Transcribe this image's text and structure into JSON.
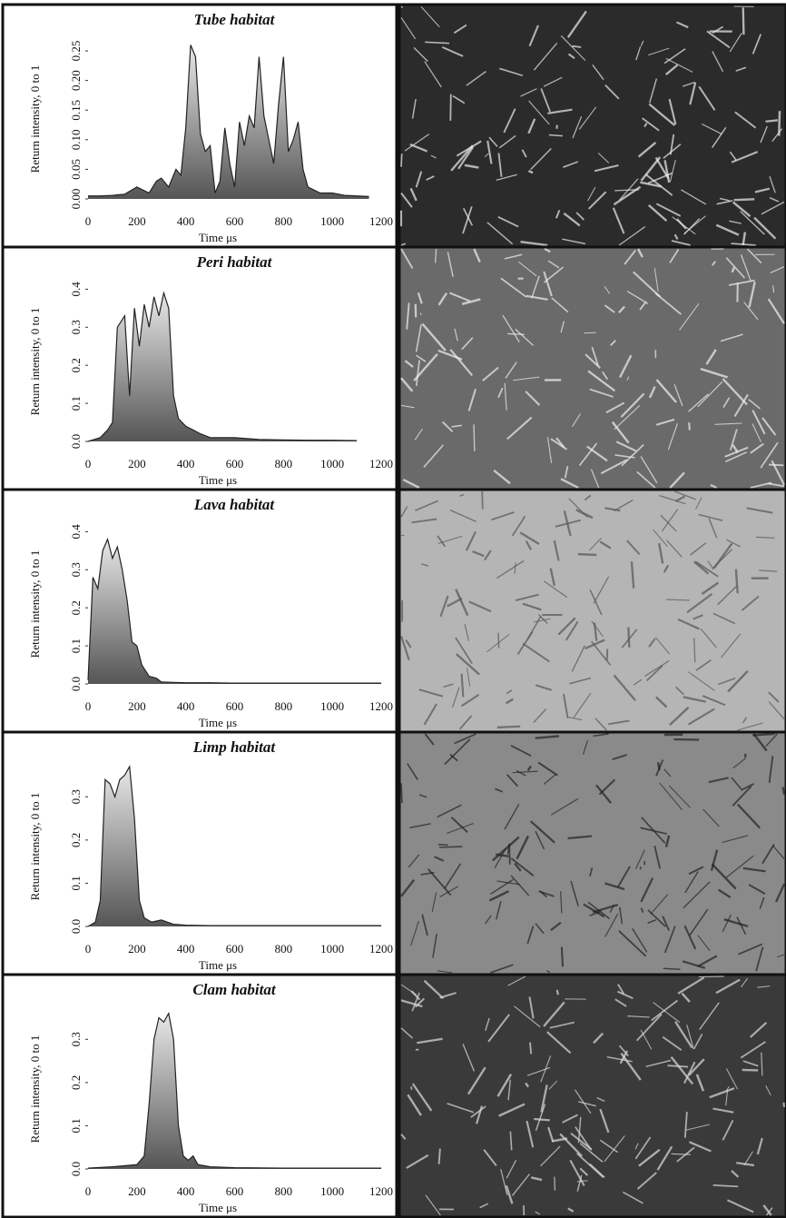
{
  "chart_data": [
    {
      "type": "area",
      "title": "Tube habitat",
      "xlabel": "Time μs",
      "ylabel": "Return intensity, 0 to 1",
      "xlim": [
        0,
        1200
      ],
      "xticks": [
        0,
        200,
        400,
        600,
        800,
        1000,
        1200
      ],
      "ylim": [
        0,
        0.27
      ],
      "yticks": [
        {
          "value": 0,
          "label": "0.00"
        },
        0.05,
        {
          "value": 0.1,
          "label": "0.10"
        },
        0.15,
        {
          "value": 0.2,
          "label": "0.20"
        },
        0.25
      ],
      "x": [
        0,
        50,
        100,
        150,
        200,
        250,
        280,
        300,
        330,
        360,
        380,
        400,
        420,
        440,
        460,
        480,
        500,
        520,
        540,
        560,
        580,
        600,
        620,
        640,
        660,
        680,
        700,
        720,
        740,
        760,
        780,
        800,
        820,
        840,
        860,
        880,
        900,
        950,
        1000,
        1050,
        1100,
        1150
      ],
      "values": [
        0.005,
        0.005,
        0.006,
        0.008,
        0.02,
        0.01,
        0.03,
        0.035,
        0.02,
        0.05,
        0.04,
        0.12,
        0.26,
        0.24,
        0.11,
        0.08,
        0.09,
        0.01,
        0.03,
        0.12,
        0.06,
        0.02,
        0.13,
        0.09,
        0.14,
        0.12,
        0.24,
        0.14,
        0.1,
        0.06,
        0.16,
        0.24,
        0.08,
        0.1,
        0.13,
        0.05,
        0.02,
        0.01,
        0.01,
        0.006,
        0.005,
        0.004
      ]
    },
    {
      "type": "area",
      "title": "Peri habitat",
      "xlabel": "Time μs",
      "ylabel": "Return intensity, 0 to 1",
      "xlim": [
        0,
        1200
      ],
      "xticks": [
        0,
        200,
        400,
        600,
        800,
        1000,
        1200
      ],
      "ylim": [
        0,
        0.42
      ],
      "yticks": [
        {
          "value": 0,
          "label": "0.0"
        },
        0.1,
        0.2,
        0.3,
        0.4
      ],
      "x": [
        0,
        50,
        80,
        100,
        120,
        150,
        170,
        190,
        210,
        230,
        250,
        270,
        290,
        310,
        330,
        350,
        370,
        400,
        430,
        460,
        500,
        550,
        600,
        700,
        800,
        900,
        1000,
        1100
      ],
      "values": [
        0,
        0.01,
        0.03,
        0.05,
        0.3,
        0.33,
        0.12,
        0.35,
        0.25,
        0.36,
        0.3,
        0.38,
        0.33,
        0.39,
        0.35,
        0.12,
        0.06,
        0.04,
        0.03,
        0.02,
        0.01,
        0.01,
        0.01,
        0.005,
        0.004,
        0.003,
        0.003,
        0.002
      ]
    },
    {
      "type": "area",
      "title": "Lava habitat",
      "xlabel": "Time μs",
      "ylabel": "Return intensity, 0 to 1",
      "xlim": [
        0,
        1200
      ],
      "xticks": [
        0,
        200,
        400,
        600,
        800,
        1000,
        1200
      ],
      "ylim": [
        0,
        0.42
      ],
      "yticks": [
        {
          "value": 0,
          "label": "0.0"
        },
        0.1,
        0.2,
        0.3,
        0.4
      ],
      "x": [
        0,
        20,
        40,
        60,
        80,
        100,
        120,
        140,
        160,
        180,
        200,
        220,
        250,
        280,
        300,
        350,
        400,
        500,
        600,
        800,
        1000,
        1200
      ],
      "values": [
        0.01,
        0.28,
        0.25,
        0.35,
        0.38,
        0.33,
        0.36,
        0.3,
        0.22,
        0.11,
        0.1,
        0.05,
        0.02,
        0.015,
        0.005,
        0.004,
        0.003,
        0.003,
        0.002,
        0.002,
        0.002,
        0.002
      ]
    },
    {
      "type": "area",
      "title": "Limp habitat",
      "xlabel": "Time μs",
      "ylabel": "Return intensity, 0 to 1",
      "xlim": [
        0,
        1200
      ],
      "xticks": [
        0,
        200,
        400,
        600,
        800,
        1000,
        1200
      ],
      "ylim": [
        0,
        0.37
      ],
      "yticks": [
        {
          "value": 0,
          "label": "0.0"
        },
        0.1,
        0.2,
        0.3
      ],
      "x": [
        0,
        30,
        50,
        70,
        90,
        110,
        130,
        150,
        170,
        190,
        210,
        230,
        260,
        300,
        350,
        400,
        500,
        600,
        800,
        1000,
        1200
      ],
      "values": [
        0,
        0.01,
        0.06,
        0.34,
        0.33,
        0.3,
        0.34,
        0.35,
        0.37,
        0.25,
        0.06,
        0.02,
        0.01,
        0.015,
        0.005,
        0.003,
        0.002,
        0.002,
        0.002,
        0.002,
        0.002
      ]
    },
    {
      "type": "area",
      "title": "Clam habitat",
      "xlabel": "Time μs",
      "ylabel": "Return intensity, 0 to 1",
      "xlim": [
        0,
        1200
      ],
      "xticks": [
        0,
        200,
        400,
        600,
        800,
        1000,
        1200
      ],
      "ylim": [
        0,
        0.37
      ],
      "yticks": [
        {
          "value": 0,
          "label": "0.0"
        },
        0.1,
        0.2,
        0.3
      ],
      "x": [
        0,
        100,
        200,
        230,
        250,
        270,
        290,
        310,
        330,
        350,
        370,
        390,
        410,
        430,
        450,
        500,
        600,
        800,
        1000,
        1200
      ],
      "values": [
        0.002,
        0.005,
        0.01,
        0.03,
        0.15,
        0.3,
        0.35,
        0.34,
        0.36,
        0.3,
        0.1,
        0.03,
        0.02,
        0.03,
        0.01,
        0.005,
        0.003,
        0.002,
        0.002,
        0.002
      ]
    }
  ]
}
